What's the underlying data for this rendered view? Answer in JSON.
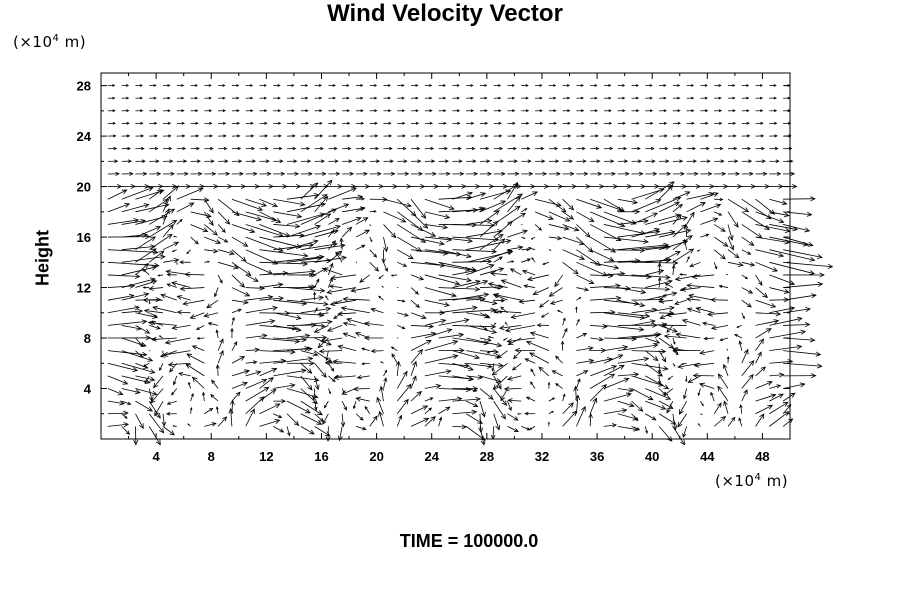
{
  "chart_data": {
    "type": "vector-field",
    "title": "Wind Velocity Vector",
    "xlabel": "",
    "ylabel": "Height",
    "x_unit_prefix": "(×10",
    "x_unit_exp": "4",
    "x_unit_suffix": " m)",
    "y_unit_prefix": "(×10",
    "y_unit_exp": "4",
    "y_unit_suffix": " m)",
    "xlim": [
      0,
      50
    ],
    "ylim": [
      0,
      29
    ],
    "x_ticks": [
      4,
      8,
      12,
      16,
      20,
      24,
      28,
      32,
      36,
      40,
      44,
      48
    ],
    "y_ticks": [
      4,
      8,
      12,
      16,
      20,
      24,
      28
    ],
    "grid": false,
    "vectors": {
      "x_start": 0.5,
      "x_step": 1,
      "nx": 50,
      "y_start": 1,
      "y_step": 1,
      "ny": 28,
      "units_per_arrow_length": 1,
      "note_active_top": 19
    },
    "annotation": "TIME = 100000.0"
  }
}
